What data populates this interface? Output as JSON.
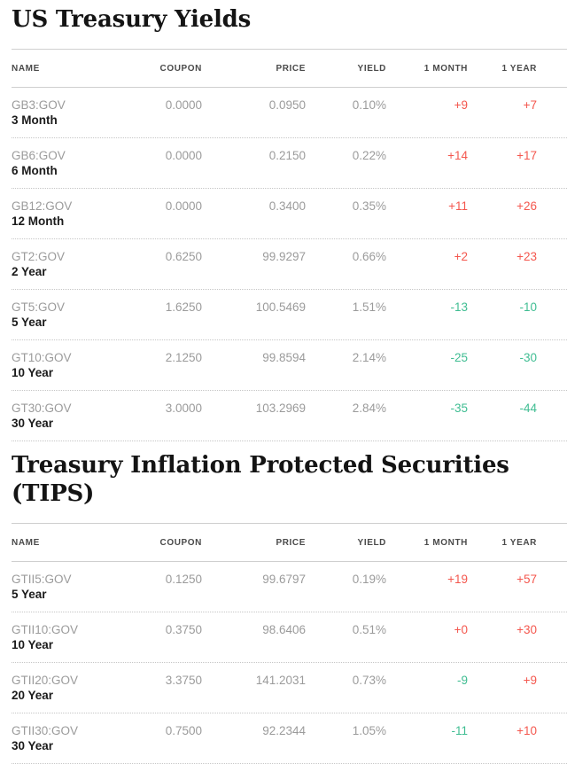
{
  "colors": {
    "positive_change": "#f4574e",
    "negative_change": "#3fbd92",
    "muted_text": "#9b9b9b",
    "dark_text": "#1b1b1b",
    "header_text": "#4a4a4a",
    "solid_rule": "#cfcfcf",
    "dotted_rule": "#c6c6c6"
  },
  "columns": [
    "Name",
    "Coupon",
    "Price",
    "Yield",
    "1 Month",
    "1 Year"
  ],
  "sections": [
    {
      "title": "US Treasury Yields",
      "rows": [
        {
          "ticker": "GB3:GOV",
          "maturity": "3 Month",
          "coupon": "0.0000",
          "price": "0.0950",
          "yield": "0.10%",
          "one_month": "+9",
          "one_month_dir": "up",
          "one_year": "+7",
          "one_year_dir": "up"
        },
        {
          "ticker": "GB6:GOV",
          "maturity": "6 Month",
          "coupon": "0.0000",
          "price": "0.2150",
          "yield": "0.22%",
          "one_month": "+14",
          "one_month_dir": "up",
          "one_year": "+17",
          "one_year_dir": "up"
        },
        {
          "ticker": "GB12:GOV",
          "maturity": "12 Month",
          "coupon": "0.0000",
          "price": "0.3400",
          "yield": "0.35%",
          "one_month": "+11",
          "one_month_dir": "up",
          "one_year": "+26",
          "one_year_dir": "up"
        },
        {
          "ticker": "GT2:GOV",
          "maturity": "2 Year",
          "coupon": "0.6250",
          "price": "99.9297",
          "yield": "0.66%",
          "one_month": "+2",
          "one_month_dir": "up",
          "one_year": "+23",
          "one_year_dir": "up"
        },
        {
          "ticker": "GT5:GOV",
          "maturity": "5 Year",
          "coupon": "1.6250",
          "price": "100.5469",
          "yield": "1.51%",
          "one_month": "-13",
          "one_month_dir": "down",
          "one_year": "-10",
          "one_year_dir": "down"
        },
        {
          "ticker": "GT10:GOV",
          "maturity": "10 Year",
          "coupon": "2.1250",
          "price": "99.8594",
          "yield": "2.14%",
          "one_month": "-25",
          "one_month_dir": "down",
          "one_year": "-30",
          "one_year_dir": "down"
        },
        {
          "ticker": "GT30:GOV",
          "maturity": "30 Year",
          "coupon": "3.0000",
          "price": "103.2969",
          "yield": "2.84%",
          "one_month": "-35",
          "one_month_dir": "down",
          "one_year": "-44",
          "one_year_dir": "down"
        }
      ]
    },
    {
      "title": "Treasury Inflation Protected Securities (TIPS)",
      "rows": [
        {
          "ticker": "GTII5:GOV",
          "maturity": "5 Year",
          "coupon": "0.1250",
          "price": "99.6797",
          "yield": "0.19%",
          "one_month": "+19",
          "one_month_dir": "up",
          "one_year": "+57",
          "one_year_dir": "up"
        },
        {
          "ticker": "GTII10:GOV",
          "maturity": "10 Year",
          "coupon": "0.3750",
          "price": "98.6406",
          "yield": "0.51%",
          "one_month": "+0",
          "one_month_dir": "up",
          "one_year": "+30",
          "one_year_dir": "up"
        },
        {
          "ticker": "GTII20:GOV",
          "maturity": "20 Year",
          "coupon": "3.3750",
          "price": "141.2031",
          "yield": "0.73%",
          "one_month": "-9",
          "one_month_dir": "down",
          "one_year": "+9",
          "one_year_dir": "up"
        },
        {
          "ticker": "GTII30:GOV",
          "maturity": "30 Year",
          "coupon": "0.7500",
          "price": "92.2344",
          "yield": "1.05%",
          "one_month": "-11",
          "one_month_dir": "down",
          "one_year": "+10",
          "one_year_dir": "up"
        }
      ]
    }
  ]
}
